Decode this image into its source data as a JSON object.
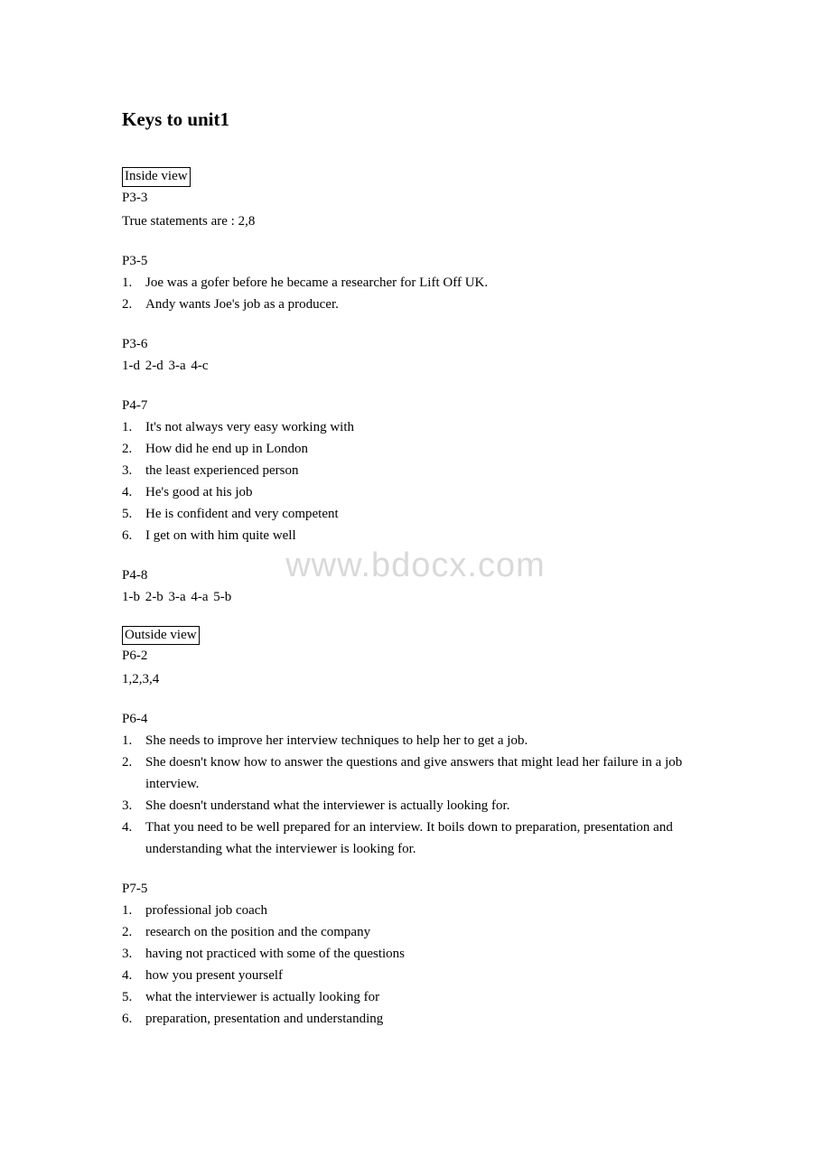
{
  "title": "Keys to unit1",
  "watermark": "www.bdocx.com",
  "sections": {
    "inside_view_label": "Inside view",
    "outside_view_label": "Outside view"
  },
  "p3_3": {
    "ref": "P3-3",
    "text": "True statements are : 2,8"
  },
  "p3_5": {
    "ref": "P3-5",
    "items": [
      "Joe was a gofer before he became a researcher for Lift Off UK.",
      "Andy wants Joe's job as a producer."
    ]
  },
  "p3_6": {
    "ref": "P3-6",
    "answers": "1-d   2-d   3-a   4-c"
  },
  "p4_7": {
    "ref": "P4-7",
    "items": [
      "It's not always very easy working with",
      "How did he end up in London",
      "the least experienced person",
      "He's good at his job",
      "He is confident and very competent",
      "I get on with him quite well"
    ]
  },
  "p4_8": {
    "ref": "P4-8",
    "answers": "1-b   2-b   3-a   4-a   5-b"
  },
  "p6_2": {
    "ref": "P6-2",
    "text": "1,2,3,4"
  },
  "p6_4": {
    "ref": "P6-4",
    "items": [
      "She needs to improve her interview techniques to help her to get a job.",
      "She doesn't know how to answer the questions and give answers that might lead her failure in a job interview.",
      "She doesn't understand what the interviewer is actually looking for.",
      "That you need to be well prepared for an interview. It boils down to preparation, presentation and understanding what the interviewer is looking for."
    ]
  },
  "p7_5": {
    "ref": "P7-5",
    "items": [
      "professional job coach",
      "research on the position and the company",
      "having not practiced with some of the questions",
      "how you present yourself",
      "what the interviewer is actually looking for",
      "preparation, presentation and understanding"
    ]
  },
  "numbers": [
    "1.",
    "2.",
    "3.",
    "4.",
    "5.",
    "6."
  ]
}
